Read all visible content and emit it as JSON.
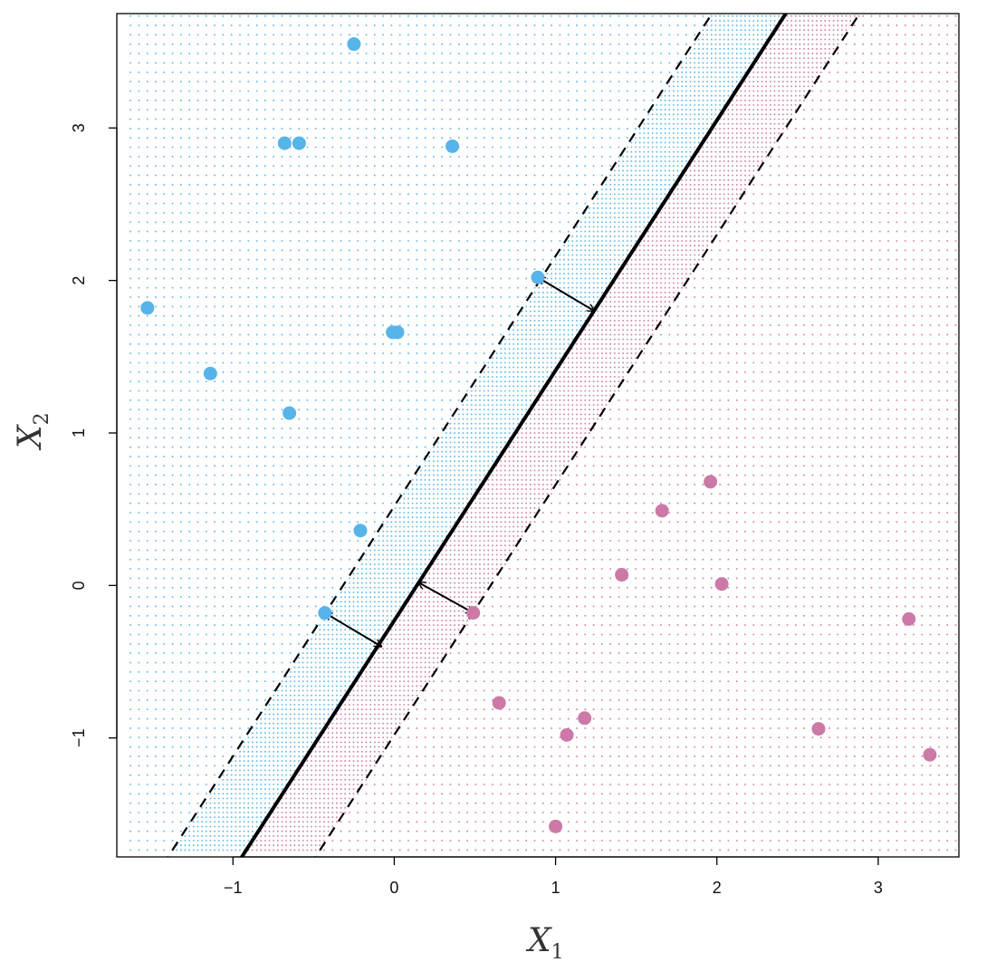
{
  "chart_data": {
    "type": "scatter",
    "title": "",
    "xlabel": {
      "main": "X",
      "sub": "1"
    },
    "ylabel": {
      "main": "X",
      "sub": "2"
    },
    "xlim": [
      -1.72,
      3.5
    ],
    "ylim": [
      -1.78,
      3.75
    ],
    "xticks": [
      -1,
      0,
      1,
      2,
      3
    ],
    "yticks": [
      -1,
      0,
      1,
      2,
      3
    ],
    "xtick_labels": [
      "−1",
      "0",
      "1",
      "2",
      "3"
    ],
    "ytick_labels": [
      "−1",
      "0",
      "1",
      "2",
      "3"
    ],
    "grid": false,
    "legend": "none",
    "colors": {
      "blue": "#56B4E9",
      "pink": "#CC79A7",
      "line": "#000000"
    },
    "hyperplane": {
      "slope": 1.64,
      "intercept": -0.23,
      "margin_offset": 0.75
    },
    "series": [
      {
        "color": "#56B4E9",
        "points": [
          [
            -0.25,
            3.55
          ],
          [
            -0.68,
            2.9
          ],
          [
            -0.59,
            2.9
          ],
          [
            0.36,
            2.88
          ],
          [
            0.89,
            2.02
          ],
          [
            -1.53,
            1.82
          ],
          [
            -0.01,
            1.66
          ],
          [
            0.02,
            1.66
          ],
          [
            -1.14,
            1.39
          ],
          [
            -0.65,
            1.13
          ],
          [
            -0.21,
            0.36
          ],
          [
            -0.43,
            -0.18
          ]
        ]
      },
      {
        "color": "#CC79A7",
        "points": [
          [
            1.96,
            0.68
          ],
          [
            1.66,
            0.49
          ],
          [
            1.41,
            0.07
          ],
          [
            2.03,
            0.01
          ],
          [
            0.49,
            -0.18
          ],
          [
            3.19,
            -0.22
          ],
          [
            0.65,
            -0.77
          ],
          [
            1.18,
            -0.87
          ],
          [
            1.07,
            -0.98
          ],
          [
            2.63,
            -0.94
          ],
          [
            3.32,
            -1.11
          ],
          [
            1.0,
            -1.58
          ]
        ]
      }
    ],
    "arrows": [
      {
        "from": [
          0.89,
          2.02
        ],
        "to": [
          1.24,
          1.8
        ]
      },
      {
        "from": [
          -0.43,
          -0.18
        ],
        "to": [
          -0.08,
          -0.4
        ]
      },
      {
        "from": [
          0.15,
          0.02
        ],
        "to": [
          0.49,
          -0.18
        ]
      }
    ]
  }
}
